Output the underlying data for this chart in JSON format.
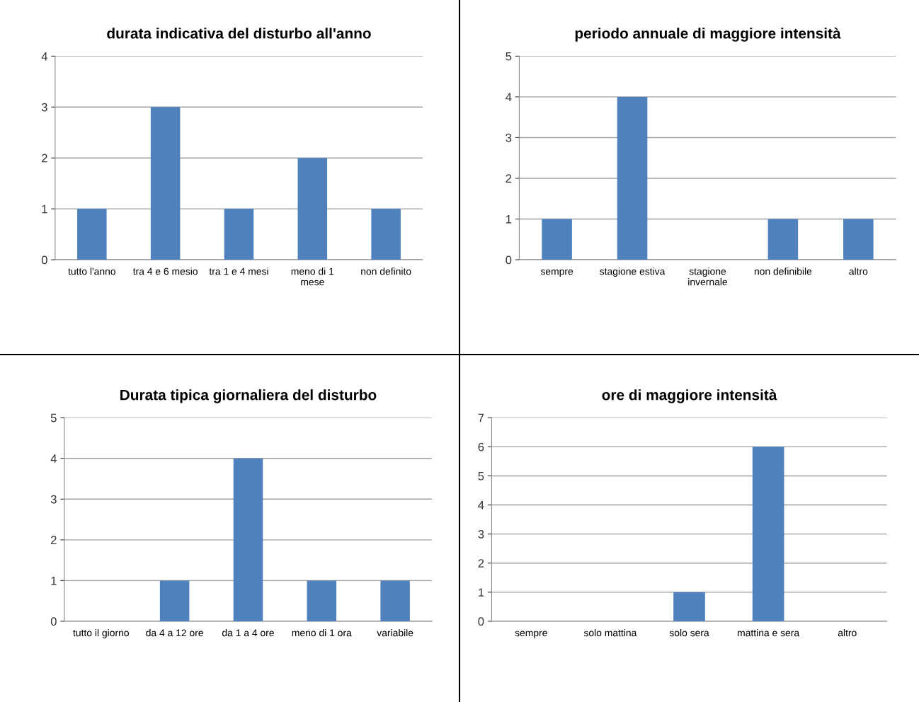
{
  "chart_data": [
    {
      "type": "bar",
      "title": "durata indicativa del disturbo all'anno",
      "categories": [
        "tutto l'anno",
        "tra 4 e 6 mesio",
        "tra 1 e 4 mesi",
        "meno di 1\nmese",
        "non definito"
      ],
      "values": [
        1,
        3,
        1,
        2,
        1
      ],
      "color": "#4f81bd",
      "ylim": [
        0,
        4
      ],
      "yticks": [
        0,
        1,
        2,
        3,
        4
      ],
      "grid": "y"
    },
    {
      "type": "bar",
      "title": "periodo annuale di maggiore intensità",
      "categories": [
        "sempre",
        "stagione estiva",
        "stagione\ninvernale",
        "non definibile",
        "altro"
      ],
      "values": [
        1,
        4,
        0,
        1,
        1
      ],
      "color": "#4f81bd",
      "ylim": [
        0,
        5
      ],
      "yticks": [
        0,
        1,
        2,
        3,
        4,
        5
      ],
      "grid": "y"
    },
    {
      "type": "bar",
      "title": "Durata tipica giornaliera del disturbo",
      "categories": [
        "tutto il giorno",
        "da 4 a 12 ore",
        "da 1 a 4 ore",
        "meno di 1 ora",
        "variabile"
      ],
      "values": [
        0,
        1,
        4,
        1,
        1
      ],
      "color": "#4f81bd",
      "ylim": [
        0,
        5
      ],
      "yticks": [
        0,
        1,
        2,
        3,
        4,
        5
      ],
      "grid": "y"
    },
    {
      "type": "bar",
      "title": "ore di maggiore intensità",
      "categories": [
        "sempre",
        "solo mattina",
        "solo sera",
        "mattina e sera",
        "altro"
      ],
      "values": [
        0,
        0,
        1,
        6,
        0
      ],
      "color": "#4f81bd",
      "ylim": [
        0,
        7
      ],
      "yticks": [
        0,
        1,
        2,
        3,
        4,
        5,
        6,
        7
      ],
      "grid": "y"
    }
  ]
}
